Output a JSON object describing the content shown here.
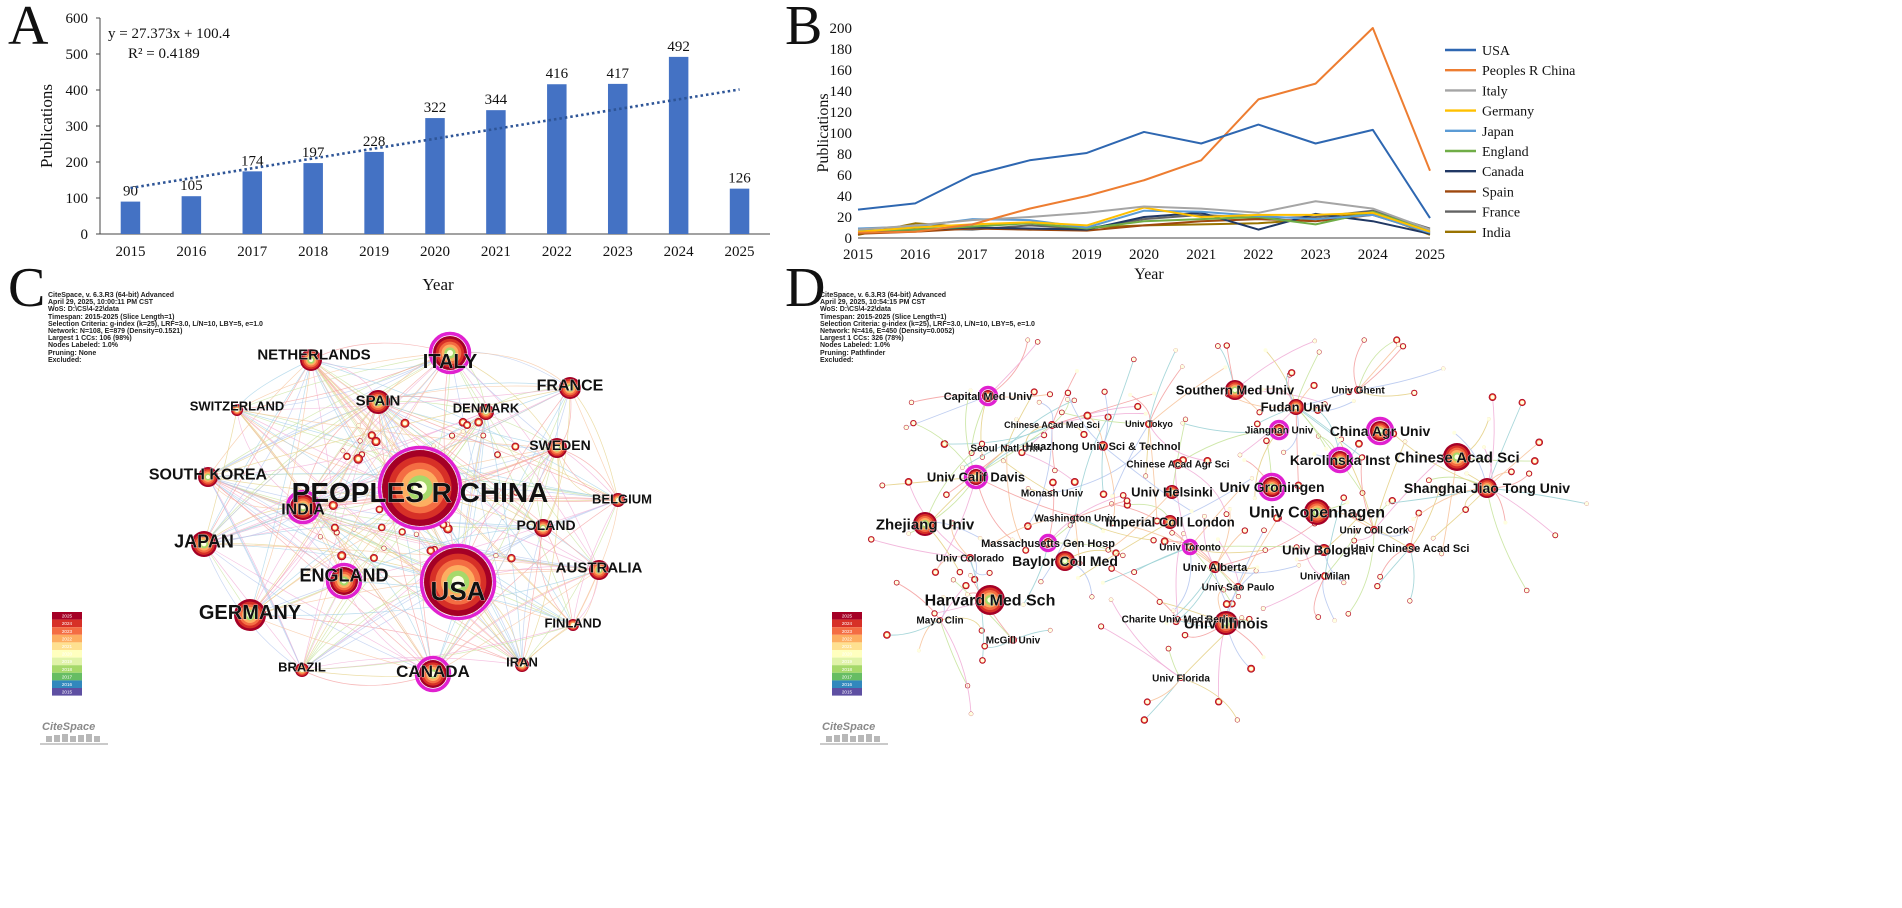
{
  "panels": {
    "a": "A",
    "b": "B",
    "c": "C",
    "d": "D"
  },
  "chart_data": [
    {
      "type": "bar",
      "panel": "A",
      "categories": [
        "2015",
        "2016",
        "2017",
        "2018",
        "2019",
        "2020",
        "2021",
        "2022",
        "2023",
        "2024",
        "2025"
      ],
      "values": [
        90,
        105,
        174,
        197,
        228,
        322,
        344,
        416,
        417,
        492,
        126
      ],
      "xlabel": "Year",
      "ylabel": "Publications",
      "ylim": [
        0,
        600
      ],
      "yticks": [
        "0",
        "100",
        "200",
        "300",
        "400",
        "500",
        "600"
      ],
      "trendline": {
        "slope": 27.373,
        "intercept": 100.4,
        "equation": "y = 27.373x + 100.4",
        "r2": "R² = 0.4189"
      },
      "colors": {
        "bar": "#4472c4",
        "trend": "#2e5597"
      }
    },
    {
      "type": "line",
      "panel": "B",
      "x": [
        "2015",
        "2016",
        "2017",
        "2018",
        "2019",
        "2020",
        "2021",
        "2022",
        "2023",
        "2024",
        "2025"
      ],
      "xlabel": "Year",
      "ylabel": "Publications",
      "ylim": [
        0,
        200
      ],
      "yticks": [
        "0",
        "20",
        "40",
        "60",
        "80",
        "100",
        "120",
        "140",
        "160",
        "180",
        "200"
      ],
      "series": [
        {
          "name": "USA",
          "color": "#2e67b1",
          "values": [
            27,
            33,
            60,
            74,
            81,
            101,
            90,
            108,
            90,
            103,
            19
          ]
        },
        {
          "name": "Peoples R China",
          "color": "#ed7d31",
          "values": [
            5,
            6,
            13,
            28,
            40,
            55,
            74,
            132,
            147,
            200,
            64
          ]
        },
        {
          "name": "Italy",
          "color": "#a5a5a5",
          "values": [
            8,
            12,
            17,
            20,
            24,
            30,
            28,
            24,
            35,
            28,
            8
          ]
        },
        {
          "name": "Germany",
          "color": "#ffc000",
          "values": [
            6,
            10,
            13,
            15,
            12,
            29,
            20,
            22,
            22,
            24,
            6
          ]
        },
        {
          "name": "Japan",
          "color": "#5b9bd5",
          "values": [
            9,
            11,
            18,
            17,
            10,
            26,
            25,
            21,
            18,
            22,
            5
          ]
        },
        {
          "name": "England",
          "color": "#70ad47",
          "values": [
            7,
            8,
            11,
            14,
            9,
            16,
            18,
            20,
            13,
            25,
            7
          ]
        },
        {
          "name": "Canada",
          "color": "#203864",
          "values": [
            5,
            8,
            10,
            9,
            8,
            20,
            24,
            8,
            23,
            16,
            4
          ]
        },
        {
          "name": "Spain",
          "color": "#9e480e",
          "values": [
            4,
            6,
            9,
            8,
            7,
            12,
            16,
            18,
            16,
            22,
            5
          ]
        },
        {
          "name": "France",
          "color": "#636363",
          "values": [
            5,
            9,
            8,
            12,
            9,
            18,
            22,
            19,
            20,
            26,
            9
          ]
        },
        {
          "name": "India",
          "color": "#997300",
          "values": [
            3,
            14,
            10,
            8,
            10,
            12,
            13,
            14,
            18,
            24,
            3
          ]
        }
      ]
    }
  ],
  "networks": {
    "c": {
      "meta": "CiteSpace, v. 6.3.R3 (64-bit) Advanced\nApril 29, 2025, 10:00:11 PM CST\nWoS: D:\\CS\\4-22\\data\nTimespan: 2015-2025 (Slice Length=1)\nSelection Criteria: g-index (k=25), LRF=3.0, L/N=10, LBY=5, e=1.0\nNetwork: N=108, E=879 (Density=0.1521)\nLargest 1 CCs: 106 (98%)\nNodes Labeled: 1.0%\nPruning: None\nExcluded:",
      "nodes": [
        {
          "label": "PEOPLES R CHINA",
          "size": 28
        },
        {
          "label": "USA",
          "size": 26
        },
        {
          "label": "ITALY",
          "size": 20
        },
        {
          "label": "NETHERLANDS",
          "size": 15
        },
        {
          "label": "FRANCE",
          "size": 16
        },
        {
          "label": "SPAIN",
          "size": 15
        },
        {
          "label": "SWITZERLAND",
          "size": 13
        },
        {
          "label": "DENMARK",
          "size": 13
        },
        {
          "label": "SWEDEN",
          "size": 14
        },
        {
          "label": "SOUTH KOREA",
          "size": 16
        },
        {
          "label": "INDIA",
          "size": 16
        },
        {
          "label": "BELGIUM",
          "size": 13
        },
        {
          "label": "POLAND",
          "size": 14
        },
        {
          "label": "JAPAN",
          "size": 18
        },
        {
          "label": "ENGLAND",
          "size": 18
        },
        {
          "label": "AUSTRALIA",
          "size": 15
        },
        {
          "label": "GERMANY",
          "size": 20
        },
        {
          "label": "FINLAND",
          "size": 13
        },
        {
          "label": "BRAZIL",
          "size": 13
        },
        {
          "label": "CANADA",
          "size": 17
        },
        {
          "label": "IRAN",
          "size": 13
        }
      ]
    },
    "d": {
      "meta": "CiteSpace, v. 6.3.R3 (64-bit) Advanced\nApril 29, 2025, 10:54:15 PM CST\nWoS: D:\\CS\\4-22\\data\nTimespan: 2015-2025 (Slice Length=1)\nSelection Criteria: g-index (k=25), LRF=3.0, L/N=10, LBY=5, e=1.0\nNetwork: N=416, E=450 (Density=0.0052)\nLargest 1 CCs: 326 (78%)\nNodes Labeled: 1.0%\nPruning: Pathfinder\nExcluded:",
      "nodes": [
        {
          "label": "Capital Med Univ",
          "size": 11
        },
        {
          "label": "Southern Med Univ",
          "size": 13
        },
        {
          "label": "Univ Ghent",
          "size": 10
        },
        {
          "label": "Fudan Univ",
          "size": 13
        },
        {
          "label": "Chinese Acad Med Sci",
          "size": 9
        },
        {
          "label": "Univ Tokyo",
          "size": 9
        },
        {
          "label": "Jiangnan Univ",
          "size": 10
        },
        {
          "label": "China Agr Univ",
          "size": 14
        },
        {
          "label": "Seoul Natl Univ",
          "size": 10
        },
        {
          "label": "Huazhong Univ Sci & Technol",
          "size": 11
        },
        {
          "label": "Chinese Acad Sci",
          "size": 15
        },
        {
          "label": "Chinese Acad Agr Sci",
          "size": 10
        },
        {
          "label": "Karolinska Inst",
          "size": 14
        },
        {
          "label": "Univ Calif Davis",
          "size": 13
        },
        {
          "label": "Monash Univ",
          "size": 10
        },
        {
          "label": "Univ Helsinki",
          "size": 13
        },
        {
          "label": "Univ Groningen",
          "size": 14
        },
        {
          "label": "Shanghai Jiao Tong Univ",
          "size": 14
        },
        {
          "label": "Washington Univ",
          "size": 10
        },
        {
          "label": "Imperial Coll London",
          "size": 13
        },
        {
          "label": "Univ Copenhagen",
          "size": 16
        },
        {
          "label": "Univ Coll Cork",
          "size": 10
        },
        {
          "label": "Zhejiang Univ",
          "size": 15
        },
        {
          "label": "Massachusetts Gen Hosp",
          "size": 11
        },
        {
          "label": "Univ Bologna",
          "size": 13
        },
        {
          "label": "Univ Chinese Acad Sci",
          "size": 11
        },
        {
          "label": "Univ Colorado",
          "size": 10
        },
        {
          "label": "Baylor Coll Med",
          "size": 14
        },
        {
          "label": "Univ Toronto",
          "size": 10
        },
        {
          "label": "Univ Alberta",
          "size": 11
        },
        {
          "label": "Univ Milan",
          "size": 10
        },
        {
          "label": "Univ Sao Paulo",
          "size": 10
        },
        {
          "label": "Harvard Med Sch",
          "size": 16
        },
        {
          "label": "Charite Univ Med Berlin",
          "size": 10
        },
        {
          "label": "Mayo Clin",
          "size": 10
        },
        {
          "label": "McGill Univ",
          "size": 10
        },
        {
          "label": "Univ Illinois",
          "size": 15
        },
        {
          "label": "Univ Florida",
          "size": 10
        }
      ]
    },
    "legend_years": [
      "2025",
      "2024",
      "2023",
      "2022",
      "2021",
      "2020",
      "2019",
      "2018",
      "2017",
      "2016",
      "2015"
    ],
    "legend_colors": [
      "#a50026",
      "#d73027",
      "#f46d43",
      "#fdae61",
      "#fee090",
      "#ffffbf",
      "#e0f3a8",
      "#a6d96a",
      "#66bd63",
      "#3288bd",
      "#5e4fa2"
    ],
    "logo": "CiteSpace"
  }
}
